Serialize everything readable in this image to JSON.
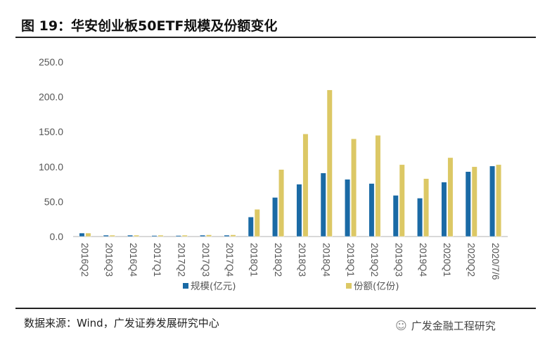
{
  "title": "图 19：华安创业板50ETF规模及份额变化",
  "source": "数据来源：Wind，广发证券发展研究中心",
  "brand": "广发金融工程研究",
  "chart_data": {
    "type": "bar",
    "title": "华安创业板50ETF规模及份额变化",
    "categories": [
      "2016Q2",
      "2016Q3",
      "2016Q4",
      "2017Q1",
      "2017Q2",
      "2017Q3",
      "2017Q4",
      "2018Q1",
      "2018Q2",
      "2018Q3",
      "2018Q4",
      "2019Q1",
      "2019Q2",
      "2019Q3",
      "2019Q4",
      "2020Q1",
      "2020Q2",
      "2020/7/6"
    ],
    "series": [
      {
        "name": "规模(亿元)",
        "color": "#1a6aa5",
        "values": [
          5,
          2,
          2,
          1.5,
          1.5,
          2,
          2,
          28,
          56,
          75,
          91,
          82,
          76,
          59,
          55,
          78,
          93,
          101
        ]
      },
      {
        "name": "份额(亿份)",
        "color": "#dcc865",
        "values": [
          5,
          2,
          2,
          2,
          2,
          2.5,
          2.5,
          39,
          96,
          147,
          210,
          140,
          145,
          103,
          83,
          113,
          100,
          103
        ]
      }
    ],
    "yticks": [
      "0.0",
      "50.0",
      "100.0",
      "150.0",
      "200.0",
      "250.0"
    ],
    "ylim": [
      0,
      250
    ],
    "legend": "bottom",
    "grid": false
  }
}
